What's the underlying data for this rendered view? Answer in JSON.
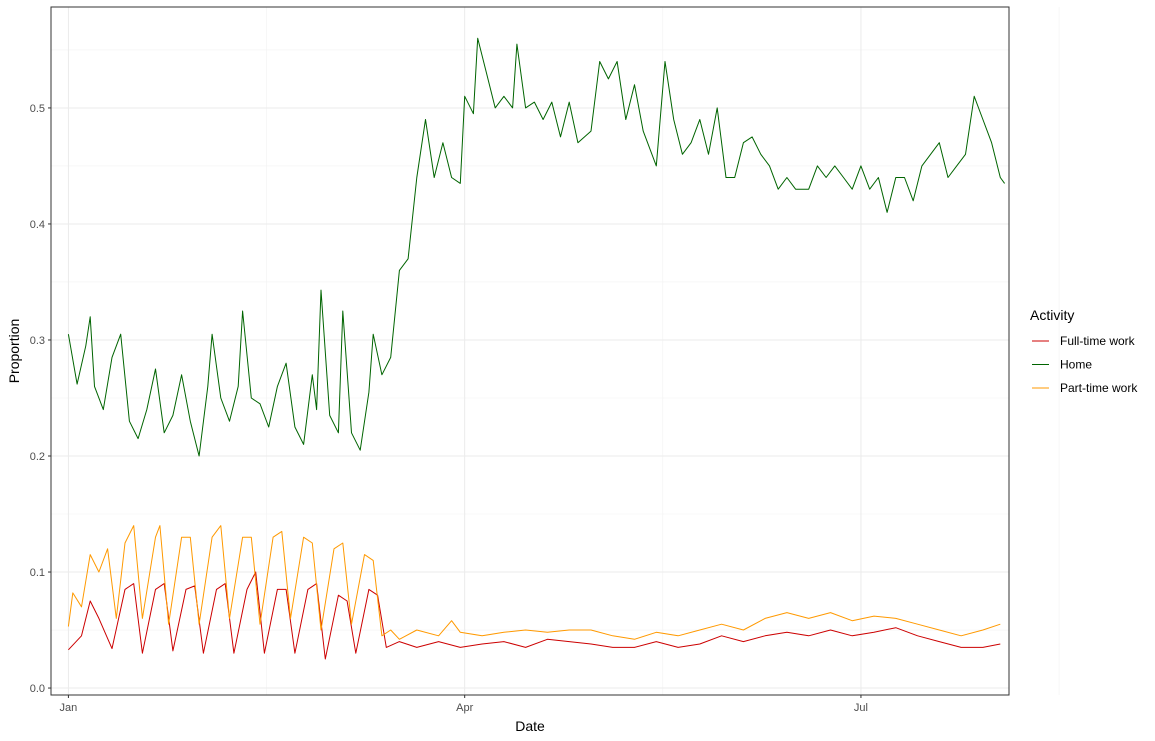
{
  "chart_data": {
    "type": "line",
    "xlabel": "Date",
    "ylabel": "Proportion",
    "x_start": "Jan",
    "xlim_days": [
      -4,
      216
    ],
    "x_ticks": [
      {
        "day": 0,
        "label": "Jan"
      },
      {
        "day": 91,
        "label": "Apr"
      },
      {
        "day": 182,
        "label": "Jul"
      }
    ],
    "ylim": [
      -0.006,
      0.587
    ],
    "y_ticks": [
      0.0,
      0.1,
      0.2,
      0.3,
      0.4,
      0.5
    ],
    "y_tick_labels": [
      "0.0",
      "0.1",
      "0.2",
      "0.3",
      "0.4",
      "0.5"
    ],
    "grid": true,
    "legend": {
      "title": "Activity",
      "position": "right"
    },
    "series": [
      {
        "name": "Full-time work",
        "color": "#cc0000",
        "points": [
          [
            0,
            0.033
          ],
          [
            3,
            0.045
          ],
          [
            5,
            0.075
          ],
          [
            7,
            0.06
          ],
          [
            10,
            0.034
          ],
          [
            13,
            0.085
          ],
          [
            15,
            0.09
          ],
          [
            17,
            0.03
          ],
          [
            20,
            0.085
          ],
          [
            22,
            0.09
          ],
          [
            24,
            0.032
          ],
          [
            27,
            0.085
          ],
          [
            29,
            0.088
          ],
          [
            31,
            0.03
          ],
          [
            34,
            0.085
          ],
          [
            36,
            0.09
          ],
          [
            38,
            0.03
          ],
          [
            41,
            0.085
          ],
          [
            43,
            0.1
          ],
          [
            45,
            0.03
          ],
          [
            48,
            0.085
          ],
          [
            50,
            0.085
          ],
          [
            52,
            0.03
          ],
          [
            55,
            0.085
          ],
          [
            57,
            0.09
          ],
          [
            59,
            0.025
          ],
          [
            62,
            0.08
          ],
          [
            64,
            0.075
          ],
          [
            66,
            0.03
          ],
          [
            69,
            0.085
          ],
          [
            71,
            0.08
          ],
          [
            73,
            0.035
          ],
          [
            76,
            0.04
          ],
          [
            80,
            0.035
          ],
          [
            85,
            0.04
          ],
          [
            90,
            0.035
          ],
          [
            95,
            0.038
          ],
          [
            100,
            0.04
          ],
          [
            105,
            0.035
          ],
          [
            110,
            0.042
          ],
          [
            115,
            0.04
          ],
          [
            120,
            0.038
          ],
          [
            125,
            0.035
          ],
          [
            130,
            0.035
          ],
          [
            135,
            0.04
          ],
          [
            140,
            0.035
          ],
          [
            145,
            0.038
          ],
          [
            150,
            0.045
          ],
          [
            155,
            0.04
          ],
          [
            160,
            0.045
          ],
          [
            165,
            0.048
          ],
          [
            170,
            0.045
          ],
          [
            175,
            0.05
          ],
          [
            180,
            0.045
          ],
          [
            185,
            0.048
          ],
          [
            190,
            0.052
          ],
          [
            195,
            0.045
          ],
          [
            200,
            0.04
          ],
          [
            205,
            0.035
          ],
          [
            210,
            0.035
          ],
          [
            214,
            0.038
          ]
        ]
      },
      {
        "name": "Home",
        "color": "#006400",
        "points": [
          [
            0,
            0.305
          ],
          [
            2,
            0.262
          ],
          [
            4,
            0.295
          ],
          [
            5,
            0.32
          ],
          [
            6,
            0.26
          ],
          [
            8,
            0.24
          ],
          [
            10,
            0.285
          ],
          [
            12,
            0.305
          ],
          [
            14,
            0.23
          ],
          [
            16,
            0.215
          ],
          [
            18,
            0.24
          ],
          [
            20,
            0.275
          ],
          [
            22,
            0.22
          ],
          [
            24,
            0.235
          ],
          [
            26,
            0.27
          ],
          [
            28,
            0.23
          ],
          [
            30,
            0.2
          ],
          [
            32,
            0.26
          ],
          [
            33,
            0.305
          ],
          [
            35,
            0.25
          ],
          [
            37,
            0.23
          ],
          [
            39,
            0.26
          ],
          [
            40,
            0.325
          ],
          [
            42,
            0.25
          ],
          [
            44,
            0.245
          ],
          [
            46,
            0.225
          ],
          [
            48,
            0.26
          ],
          [
            50,
            0.28
          ],
          [
            52,
            0.225
          ],
          [
            54,
            0.21
          ],
          [
            56,
            0.27
          ],
          [
            57,
            0.24
          ],
          [
            58,
            0.343
          ],
          [
            60,
            0.235
          ],
          [
            62,
            0.22
          ],
          [
            63,
            0.325
          ],
          [
            65,
            0.22
          ],
          [
            67,
            0.205
          ],
          [
            69,
            0.255
          ],
          [
            70,
            0.305
          ],
          [
            72,
            0.27
          ],
          [
            74,
            0.285
          ],
          [
            76,
            0.36
          ],
          [
            78,
            0.37
          ],
          [
            80,
            0.44
          ],
          [
            82,
            0.49
          ],
          [
            84,
            0.44
          ],
          [
            86,
            0.47
          ],
          [
            88,
            0.44
          ],
          [
            90,
            0.435
          ],
          [
            91,
            0.51
          ],
          [
            93,
            0.495
          ],
          [
            94,
            0.56
          ],
          [
            96,
            0.53
          ],
          [
            98,
            0.5
          ],
          [
            100,
            0.51
          ],
          [
            102,
            0.5
          ],
          [
            103,
            0.555
          ],
          [
            105,
            0.5
          ],
          [
            107,
            0.505
          ],
          [
            109,
            0.49
          ],
          [
            111,
            0.505
          ],
          [
            113,
            0.475
          ],
          [
            115,
            0.505
          ],
          [
            117,
            0.47
          ],
          [
            120,
            0.48
          ],
          [
            122,
            0.54
          ],
          [
            124,
            0.525
          ],
          [
            126,
            0.54
          ],
          [
            128,
            0.49
          ],
          [
            130,
            0.52
          ],
          [
            132,
            0.48
          ],
          [
            135,
            0.45
          ],
          [
            137,
            0.54
          ],
          [
            139,
            0.49
          ],
          [
            141,
            0.46
          ],
          [
            143,
            0.47
          ],
          [
            145,
            0.49
          ],
          [
            147,
            0.46
          ],
          [
            149,
            0.5
          ],
          [
            151,
            0.44
          ],
          [
            153,
            0.44
          ],
          [
            155,
            0.47
          ],
          [
            157,
            0.475
          ],
          [
            159,
            0.46
          ],
          [
            161,
            0.45
          ],
          [
            163,
            0.43
          ],
          [
            165,
            0.44
          ],
          [
            167,
            0.43
          ],
          [
            170,
            0.43
          ],
          [
            172,
            0.45
          ],
          [
            174,
            0.44
          ],
          [
            176,
            0.45
          ],
          [
            178,
            0.44
          ],
          [
            180,
            0.43
          ],
          [
            182,
            0.45
          ],
          [
            184,
            0.43
          ],
          [
            186,
            0.44
          ],
          [
            188,
            0.41
          ],
          [
            190,
            0.44
          ],
          [
            192,
            0.44
          ],
          [
            194,
            0.42
          ],
          [
            196,
            0.45
          ],
          [
            198,
            0.46
          ],
          [
            200,
            0.47
          ],
          [
            202,
            0.44
          ],
          [
            204,
            0.45
          ],
          [
            206,
            0.46
          ],
          [
            208,
            0.51
          ],
          [
            210,
            0.49
          ],
          [
            212,
            0.47
          ],
          [
            214,
            0.44
          ],
          [
            215,
            0.435
          ]
        ]
      },
      {
        "name": "Part-time work",
        "color": "#ff9900",
        "points": [
          [
            0,
            0.053
          ],
          [
            1,
            0.082
          ],
          [
            3,
            0.07
          ],
          [
            5,
            0.115
          ],
          [
            7,
            0.1
          ],
          [
            9,
            0.12
          ],
          [
            11,
            0.06
          ],
          [
            13,
            0.125
          ],
          [
            15,
            0.14
          ],
          [
            17,
            0.06
          ],
          [
            20,
            0.13
          ],
          [
            21,
            0.14
          ],
          [
            23,
            0.055
          ],
          [
            26,
            0.13
          ],
          [
            28,
            0.13
          ],
          [
            30,
            0.055
          ],
          [
            33,
            0.13
          ],
          [
            35,
            0.14
          ],
          [
            37,
            0.06
          ],
          [
            40,
            0.13
          ],
          [
            42,
            0.13
          ],
          [
            44,
            0.055
          ],
          [
            47,
            0.13
          ],
          [
            49,
            0.135
          ],
          [
            51,
            0.06
          ],
          [
            54,
            0.13
          ],
          [
            56,
            0.125
          ],
          [
            58,
            0.05
          ],
          [
            61,
            0.12
          ],
          [
            63,
            0.125
          ],
          [
            65,
            0.055
          ],
          [
            68,
            0.115
          ],
          [
            70,
            0.11
          ],
          [
            72,
            0.045
          ],
          [
            74,
            0.05
          ],
          [
            76,
            0.042
          ],
          [
            80,
            0.05
          ],
          [
            85,
            0.045
          ],
          [
            88,
            0.058
          ],
          [
            90,
            0.048
          ],
          [
            95,
            0.045
          ],
          [
            100,
            0.048
          ],
          [
            105,
            0.05
          ],
          [
            110,
            0.048
          ],
          [
            115,
            0.05
          ],
          [
            120,
            0.05
          ],
          [
            125,
            0.045
          ],
          [
            130,
            0.042
          ],
          [
            135,
            0.048
          ],
          [
            140,
            0.045
          ],
          [
            145,
            0.05
          ],
          [
            150,
            0.055
          ],
          [
            155,
            0.05
          ],
          [
            160,
            0.06
          ],
          [
            165,
            0.065
          ],
          [
            170,
            0.06
          ],
          [
            175,
            0.065
          ],
          [
            180,
            0.058
          ],
          [
            185,
            0.062
          ],
          [
            190,
            0.06
          ],
          [
            195,
            0.055
          ],
          [
            200,
            0.05
          ],
          [
            205,
            0.045
          ],
          [
            210,
            0.05
          ],
          [
            214,
            0.055
          ]
        ]
      }
    ]
  }
}
